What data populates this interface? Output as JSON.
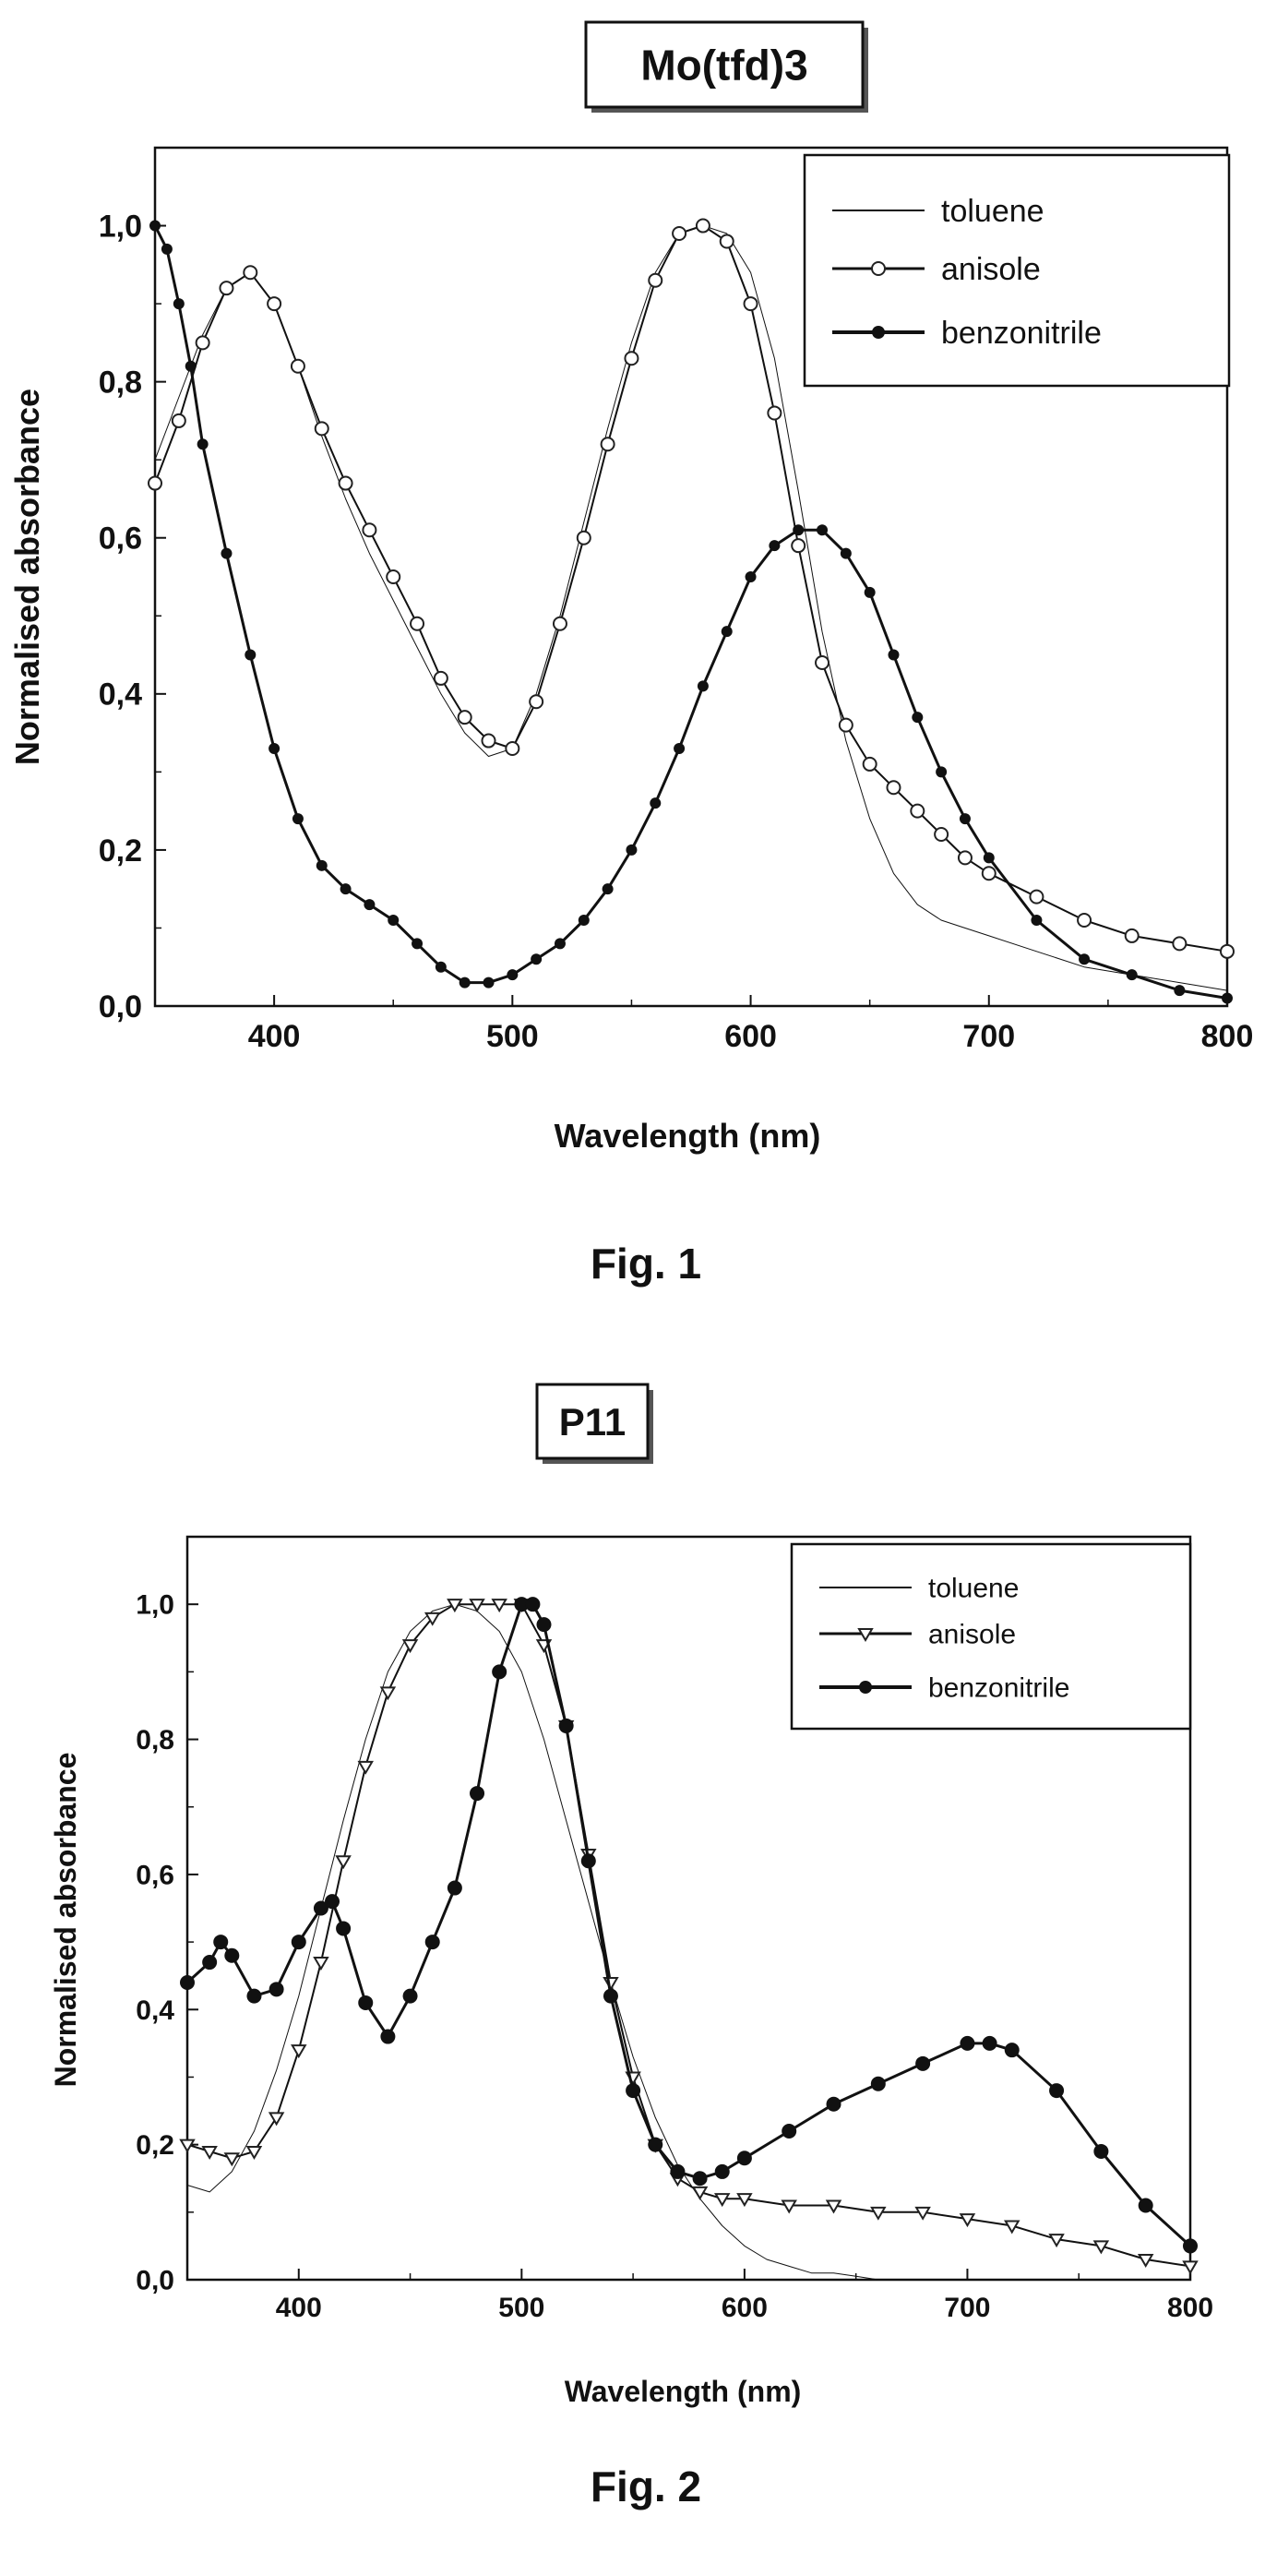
{
  "charts": [
    {
      "title": "Mo(tfd)3",
      "caption": "Fig. 1",
      "xlabel": "Wavelength (nm)",
      "ylabel": "Normalised absorbance",
      "x_ticks": [
        "400",
        "500",
        "600",
        "700",
        "800"
      ],
      "y_ticks": [
        "0,0",
        "0,2",
        "0,4",
        "0,6",
        "0,8",
        "1,0"
      ],
      "legend": [
        "toluene",
        "anisole",
        "benzonitrile"
      ]
    },
    {
      "title": "P11",
      "caption": "Fig. 2",
      "xlabel": "Wavelength (nm)",
      "ylabel": "Normalised absorbance",
      "x_ticks": [
        "400",
        "500",
        "600",
        "700",
        "800"
      ],
      "y_ticks": [
        "0,0",
        "0,2",
        "0,4",
        "0,6",
        "0,8",
        "1,0"
      ],
      "legend": [
        "toluene",
        "anisole",
        "benzonitrile"
      ]
    }
  ],
  "chart_data": [
    {
      "type": "line",
      "title": "Mo(tfd)3",
      "xlabel": "Wavelength (nm)",
      "ylabel": "Normalised absorbance",
      "xlim": [
        350,
        800
      ],
      "ylim": [
        0,
        1.1
      ],
      "grid": false,
      "legend_position": "top-right",
      "series": [
        {
          "name": "toluene",
          "marker": "none",
          "stroke_width": 1,
          "x": [
            350,
            360,
            370,
            380,
            390,
            400,
            410,
            420,
            430,
            440,
            450,
            460,
            470,
            480,
            490,
            500,
            510,
            520,
            530,
            540,
            550,
            560,
            570,
            580,
            590,
            600,
            610,
            620,
            630,
            640,
            650,
            660,
            670,
            680,
            690,
            700,
            720,
            740,
            760,
            780,
            800
          ],
          "y": [
            0.7,
            0.78,
            0.86,
            0.92,
            0.94,
            0.9,
            0.82,
            0.73,
            0.65,
            0.58,
            0.52,
            0.46,
            0.4,
            0.35,
            0.32,
            0.33,
            0.4,
            0.5,
            0.62,
            0.74,
            0.85,
            0.94,
            0.99,
            1.0,
            0.99,
            0.94,
            0.83,
            0.66,
            0.48,
            0.34,
            0.24,
            0.17,
            0.13,
            0.11,
            0.1,
            0.09,
            0.07,
            0.05,
            0.04,
            0.03,
            0.02
          ]
        },
        {
          "name": "anisole",
          "marker": "circle-open",
          "stroke_width": 2,
          "x": [
            350,
            360,
            370,
            380,
            390,
            400,
            410,
            420,
            430,
            440,
            450,
            460,
            470,
            480,
            490,
            500,
            510,
            520,
            530,
            540,
            550,
            560,
            570,
            580,
            590,
            600,
            610,
            620,
            630,
            640,
            650,
            660,
            670,
            680,
            690,
            700,
            720,
            740,
            760,
            780,
            800
          ],
          "y": [
            0.67,
            0.75,
            0.85,
            0.92,
            0.94,
            0.9,
            0.82,
            0.74,
            0.67,
            0.61,
            0.55,
            0.49,
            0.42,
            0.37,
            0.34,
            0.33,
            0.39,
            0.49,
            0.6,
            0.72,
            0.83,
            0.93,
            0.99,
            1.0,
            0.98,
            0.9,
            0.76,
            0.59,
            0.44,
            0.36,
            0.31,
            0.28,
            0.25,
            0.22,
            0.19,
            0.17,
            0.14,
            0.11,
            0.09,
            0.08,
            0.07
          ]
        },
        {
          "name": "benzonitrile",
          "marker": "dot-filled",
          "stroke_width": 3,
          "x": [
            350,
            355,
            360,
            365,
            370,
            380,
            390,
            400,
            410,
            420,
            430,
            440,
            450,
            460,
            470,
            480,
            490,
            500,
            510,
            520,
            530,
            540,
            550,
            560,
            570,
            580,
            590,
            600,
            610,
            620,
            630,
            640,
            650,
            660,
            670,
            680,
            690,
            700,
            720,
            740,
            760,
            780,
            800
          ],
          "y": [
            1.0,
            0.97,
            0.9,
            0.82,
            0.72,
            0.58,
            0.45,
            0.33,
            0.24,
            0.18,
            0.15,
            0.13,
            0.11,
            0.08,
            0.05,
            0.03,
            0.03,
            0.04,
            0.06,
            0.08,
            0.11,
            0.15,
            0.2,
            0.26,
            0.33,
            0.41,
            0.48,
            0.55,
            0.59,
            0.61,
            0.61,
            0.58,
            0.53,
            0.45,
            0.37,
            0.3,
            0.24,
            0.19,
            0.11,
            0.06,
            0.04,
            0.02,
            0.01
          ]
        }
      ]
    },
    {
      "type": "line",
      "title": "P11",
      "xlabel": "Wavelength (nm)",
      "ylabel": "Normalised absorbance",
      "xlim": [
        350,
        800
      ],
      "ylim": [
        0,
        1.1
      ],
      "grid": false,
      "legend_position": "top-right",
      "series": [
        {
          "name": "toluene",
          "marker": "none",
          "stroke_width": 1,
          "x": [
            350,
            360,
            370,
            380,
            390,
            400,
            410,
            420,
            430,
            440,
            450,
            460,
            470,
            480,
            490,
            500,
            510,
            520,
            530,
            540,
            550,
            560,
            570,
            580,
            590,
            600,
            610,
            620,
            630,
            640,
            650,
            660,
            670
          ],
          "y": [
            0.14,
            0.13,
            0.16,
            0.22,
            0.31,
            0.42,
            0.55,
            0.68,
            0.8,
            0.9,
            0.96,
            0.99,
            1.0,
            0.99,
            0.96,
            0.9,
            0.8,
            0.68,
            0.56,
            0.44,
            0.33,
            0.24,
            0.17,
            0.12,
            0.08,
            0.05,
            0.03,
            0.02,
            0.01,
            0.01,
            0.005,
            0.0,
            0.0
          ]
        },
        {
          "name": "anisole",
          "marker": "triangle-open",
          "stroke_width": 2,
          "x": [
            350,
            360,
            370,
            380,
            390,
            400,
            410,
            420,
            430,
            440,
            450,
            460,
            470,
            480,
            490,
            500,
            510,
            520,
            530,
            540,
            550,
            560,
            570,
            580,
            590,
            600,
            620,
            640,
            660,
            680,
            700,
            720,
            740,
            760,
            780,
            800
          ],
          "y": [
            0.2,
            0.19,
            0.18,
            0.19,
            0.24,
            0.34,
            0.47,
            0.62,
            0.76,
            0.87,
            0.94,
            0.98,
            1.0,
            1.0,
            1.0,
            1.0,
            0.94,
            0.82,
            0.63,
            0.44,
            0.3,
            0.2,
            0.15,
            0.13,
            0.12,
            0.12,
            0.11,
            0.11,
            0.1,
            0.1,
            0.09,
            0.08,
            0.06,
            0.05,
            0.03,
            0.02
          ]
        },
        {
          "name": "benzonitrile",
          "marker": "star-filled",
          "stroke_width": 3,
          "x": [
            350,
            360,
            365,
            370,
            380,
            390,
            400,
            410,
            415,
            420,
            430,
            440,
            450,
            460,
            470,
            480,
            490,
            500,
            505,
            510,
            520,
            530,
            540,
            550,
            560,
            570,
            580,
            590,
            600,
            620,
            640,
            660,
            680,
            700,
            710,
            720,
            740,
            760,
            780,
            800
          ],
          "y": [
            0.44,
            0.47,
            0.5,
            0.48,
            0.42,
            0.43,
            0.5,
            0.55,
            0.56,
            0.52,
            0.41,
            0.36,
            0.42,
            0.5,
            0.58,
            0.72,
            0.9,
            1.0,
            1.0,
            0.97,
            0.82,
            0.62,
            0.42,
            0.28,
            0.2,
            0.16,
            0.15,
            0.16,
            0.18,
            0.22,
            0.26,
            0.29,
            0.32,
            0.35,
            0.35,
            0.34,
            0.28,
            0.19,
            0.11,
            0.05
          ]
        }
      ]
    }
  ]
}
